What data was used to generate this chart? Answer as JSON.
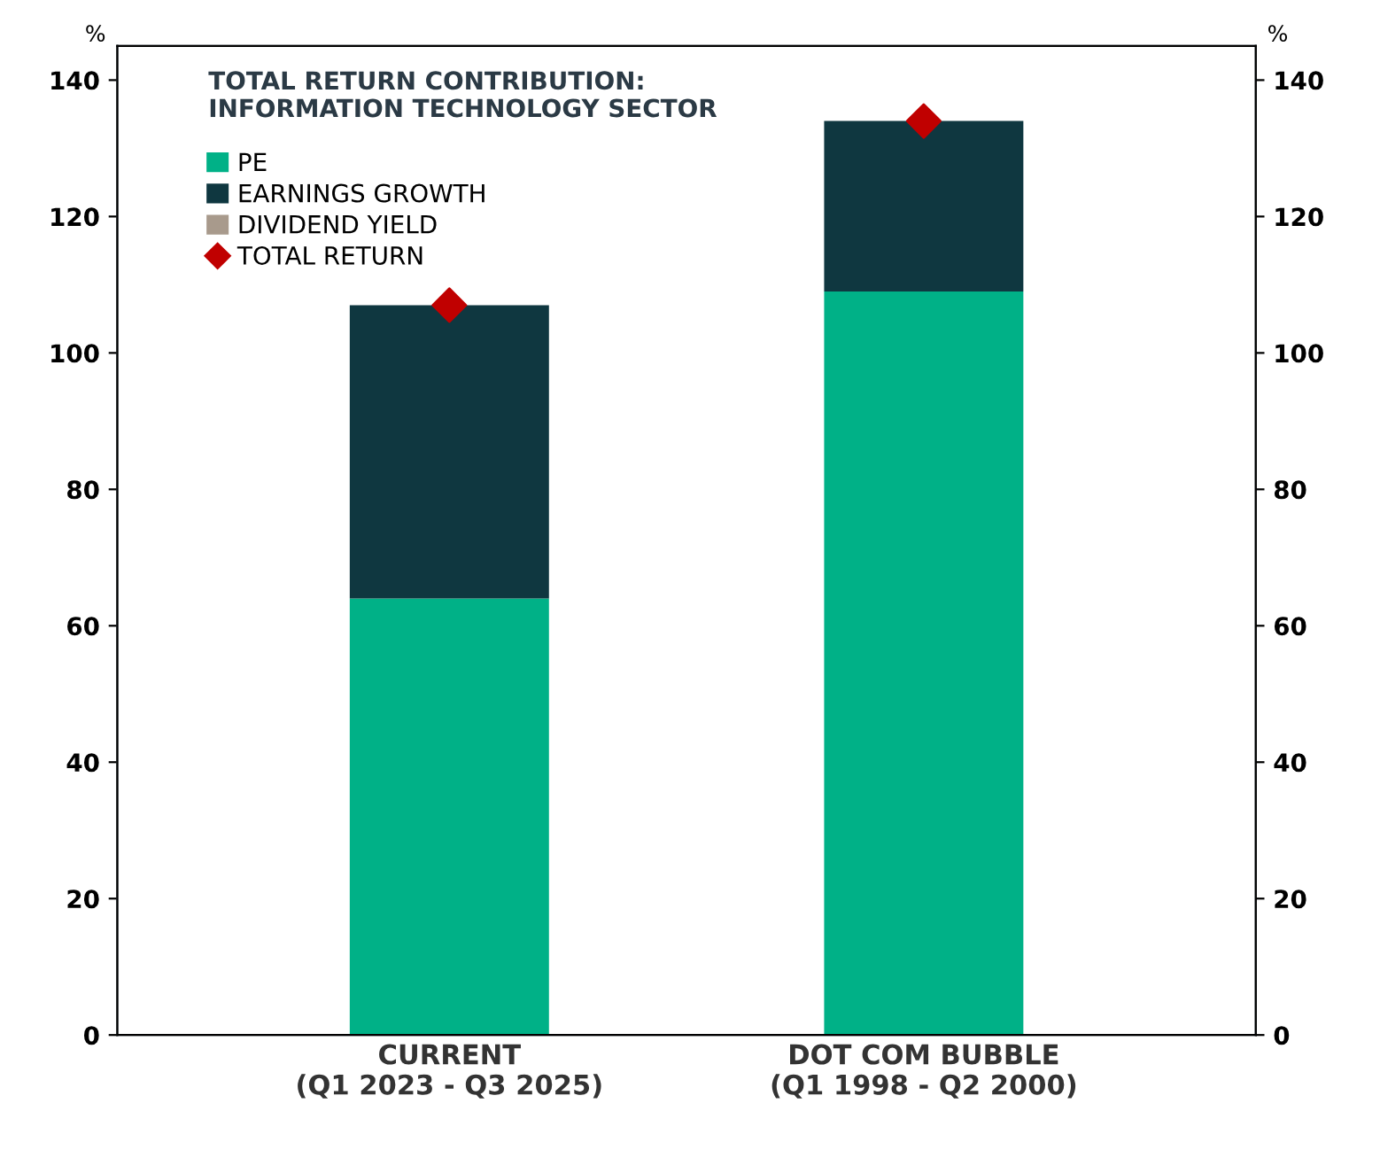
{
  "chart_data": {
    "type": "bar",
    "title": "TOTAL RETURN CONTRIBUTION:\nINFORMATION TECHNOLOGY SECTOR",
    "categories": [
      "CURRENT\n(Q1 2023 - Q3 2025)",
      "DOT COM BUBBLE\n(Q1 1998 - Q2 2000)"
    ],
    "stacked": true,
    "series": [
      {
        "name": "PE",
        "color": "#00b187",
        "values": [
          64,
          109
        ]
      },
      {
        "name": "EARNINGS GROWTH",
        "color": "#0f3740",
        "values": [
          43,
          25
        ]
      },
      {
        "name": "DIVIDEND YIELD",
        "color": "#a89a8c",
        "values": [
          null,
          null
        ]
      },
      {
        "name": "TOTAL RETURN",
        "type": "scatter",
        "color": "#c00000",
        "marker": "diamond",
        "x": [
          "CURRENT\n(Q1 2023 - Q3 2025)",
          "DOT COM BUBBLE\n(Q1 1998 - Q2 2000)"
        ],
        "values": [
          107,
          134
        ]
      }
    ],
    "ylabel": "%",
    "y2label": "%",
    "ylim": [
      0,
      145
    ],
    "yticks": [
      0,
      20,
      40,
      60,
      80,
      100,
      120,
      140
    ],
    "y2lim": [
      0,
      145
    ],
    "y2ticks": [
      0,
      20,
      40,
      60,
      80,
      100,
      120,
      140
    ],
    "grid": false,
    "legend": "top left"
  }
}
